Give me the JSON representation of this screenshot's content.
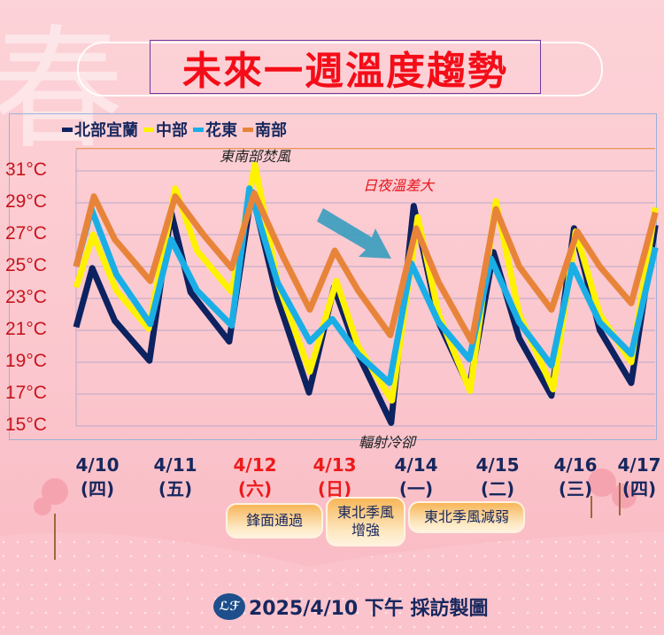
{
  "watermark": "春",
  "title": "未來一週溫度趨勢",
  "chart_data": {
    "type": "line",
    "title": "未來一週溫度趨勢",
    "categories": [
      "4/10",
      "4/11",
      "4/12",
      "4/13",
      "4/14",
      "4/15",
      "4/16",
      "4/17"
    ],
    "weekdays": [
      "(四)",
      "(五)",
      "(六)",
      "(日)",
      "(一)",
      "(二)",
      "(三)",
      "(四)"
    ],
    "weekend_color": "#ee1a1a",
    "yticks": [
      "15°C",
      "17°C",
      "19°C",
      "21°C",
      "23°C",
      "25°C",
      "27°C",
      "29°C",
      "31°C"
    ],
    "ylim": [
      15,
      32
    ],
    "grid": true,
    "legend": "top-left",
    "series": [
      {
        "name": "北部宜蘭",
        "color": "#0d2260",
        "points": [
          [
            0,
            21.2
          ],
          [
            0.2,
            24.9
          ],
          [
            0.48,
            21.6
          ],
          [
            0.91,
            19.1
          ],
          [
            1.18,
            28.4
          ],
          [
            1.42,
            23.4
          ],
          [
            1.9,
            20.3
          ],
          [
            2.18,
            29.7
          ],
          [
            2.5,
            23
          ],
          [
            2.89,
            17.1
          ],
          [
            3.2,
            23.7
          ],
          [
            3.5,
            19.5
          ],
          [
            3.91,
            15.2
          ],
          [
            4.19,
            28.8
          ],
          [
            4.5,
            21.5
          ],
          [
            4.88,
            17.4
          ],
          [
            5.18,
            25.9
          ],
          [
            5.5,
            20.5
          ],
          [
            5.9,
            16.9
          ],
          [
            6.18,
            27.4
          ],
          [
            6.5,
            21
          ],
          [
            6.89,
            17.7
          ],
          [
            7.19,
            27.6
          ]
        ]
      },
      {
        "name": "中部",
        "color": "#fff200",
        "points": [
          [
            0,
            23.7
          ],
          [
            0.21,
            27.0
          ],
          [
            0.5,
            23.5
          ],
          [
            0.9,
            21.1
          ],
          [
            1.23,
            29.9
          ],
          [
            1.5,
            26
          ],
          [
            1.93,
            23.4
          ],
          [
            2.22,
            31.4
          ],
          [
            2.5,
            24
          ],
          [
            2.9,
            18.4
          ],
          [
            3.23,
            24.1
          ],
          [
            3.5,
            20
          ],
          [
            3.92,
            16.6
          ],
          [
            4.24,
            28.1
          ],
          [
            4.5,
            22
          ],
          [
            4.89,
            17.2
          ],
          [
            5.21,
            29.1
          ],
          [
            5.5,
            22
          ],
          [
            5.92,
            17.3
          ],
          [
            6.2,
            27.2
          ],
          [
            6.5,
            22
          ],
          [
            6.89,
            19.0
          ],
          [
            7.19,
            28.7
          ]
        ]
      },
      {
        "name": "花東",
        "color": "#1aaee6",
        "points": [
          [
            0,
            25.0
          ],
          [
            0.19,
            28.6
          ],
          [
            0.5,
            24.5
          ],
          [
            0.92,
            21.4
          ],
          [
            1.18,
            26.7
          ],
          [
            1.5,
            23.5
          ],
          [
            1.93,
            21.3
          ],
          [
            2.15,
            29.9
          ],
          [
            2.5,
            24
          ],
          [
            2.9,
            20.3
          ],
          [
            3.18,
            21.7
          ],
          [
            3.5,
            19.5
          ],
          [
            3.89,
            17.7
          ],
          [
            4.16,
            25.2
          ],
          [
            4.5,
            21.5
          ],
          [
            4.88,
            19.2
          ],
          [
            5.15,
            25.5
          ],
          [
            5.5,
            21.5
          ],
          [
            5.9,
            18.8
          ],
          [
            6.16,
            25.1
          ],
          [
            6.5,
            21.5
          ],
          [
            6.89,
            19.5
          ],
          [
            7.19,
            26.2
          ]
        ]
      },
      {
        "name": "南部",
        "color": "#e8843a",
        "points": [
          [
            0,
            25.0
          ],
          [
            0.22,
            29.4
          ],
          [
            0.48,
            26.7
          ],
          [
            0.92,
            24.1
          ],
          [
            1.23,
            29.4
          ],
          [
            1.58,
            27.0
          ],
          [
            1.93,
            24.9
          ],
          [
            2.21,
            29.6
          ],
          [
            2.57,
            25.6
          ],
          [
            2.9,
            22.3
          ],
          [
            3.21,
            26.0
          ],
          [
            3.5,
            23.5
          ],
          [
            3.9,
            20.7
          ],
          [
            4.22,
            27.4
          ],
          [
            4.5,
            24
          ],
          [
            4.91,
            20.3
          ],
          [
            5.21,
            28.6
          ],
          [
            5.5,
            25
          ],
          [
            5.9,
            22.3
          ],
          [
            6.22,
            27.2
          ],
          [
            6.5,
            25
          ],
          [
            6.89,
            22.7
          ],
          [
            7.19,
            28.4
          ]
        ]
      }
    ],
    "annotations": [
      "東南部焚風",
      "日夜溫差大",
      "輻射冷卻"
    ]
  },
  "events": [
    "鋒面通過",
    "東北季風\n增強",
    "東北季風減弱"
  ],
  "footer": {
    "logo": "ℒℱ",
    "text": "2025/4/10 下午 採訪製圖"
  }
}
